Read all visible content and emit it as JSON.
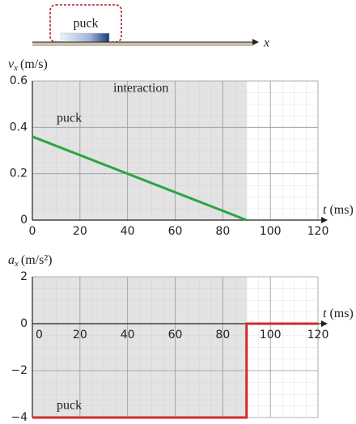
{
  "diagram": {
    "object_label": "puck",
    "axis_label": "x"
  },
  "chart_data": [
    {
      "type": "line",
      "ylabel": {
        "symbol": "v",
        "subscript": "x",
        "unit": "(m/s)"
      },
      "xlabel": {
        "symbol": "t",
        "unit": "(ms)"
      },
      "annotation": "interaction",
      "interaction_range": [
        0,
        90
      ],
      "x": [
        0,
        90
      ],
      "series": [
        {
          "name": "puck",
          "color": "#2ca444",
          "values": [
            0.36,
            0
          ]
        }
      ],
      "xlim": [
        0,
        120
      ],
      "ylim": [
        0,
        0.6
      ],
      "xticks": [
        0,
        20,
        40,
        60,
        80,
        100,
        120
      ],
      "yticks": [
        0,
        0.2,
        0.4,
        0.6
      ],
      "grid": true
    },
    {
      "type": "line",
      "ylabel": {
        "symbol": "a",
        "subscript": "x",
        "unit": "(m/s²)"
      },
      "xlabel": {
        "symbol": "t",
        "unit": "(ms)"
      },
      "interaction_range": [
        0,
        90
      ],
      "x": [
        0,
        90,
        90,
        120
      ],
      "series": [
        {
          "name": "puck",
          "color": "#d42a2a",
          "values": [
            -4,
            -4,
            0,
            0
          ]
        }
      ],
      "xlim": [
        0,
        120
      ],
      "ylim": [
        -4,
        2
      ],
      "xticks": [
        0,
        20,
        40,
        60,
        80,
        100,
        120
      ],
      "yticks": [
        {
          "value": -4,
          "label": "−4"
        },
        {
          "value": -2,
          "label": "−2"
        },
        0,
        2
      ],
      "grid": true
    }
  ]
}
